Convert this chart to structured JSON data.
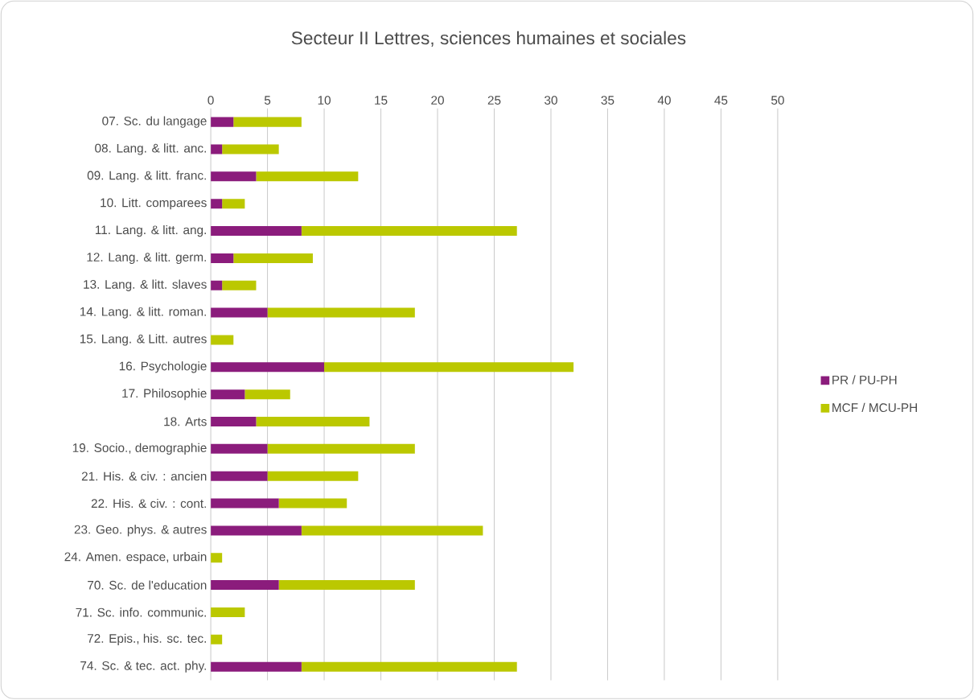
{
  "chart_data": {
    "type": "bar",
    "title": "Secteur II Lettres, sciences humaines et sociales",
    "orientation": "horizontal",
    "stacked": true,
    "categories": [
      "07. Sc. du langage",
      "08. Lang. & litt. anc.",
      "09. Lang. & litt. franc.",
      "10. Litt. comparees",
      "11. Lang. & litt. ang.",
      "12. Lang. & litt. germ.",
      "13. Lang. & litt. slaves",
      "14. Lang. & litt. roman.",
      "15. Lang. & Litt. autres",
      "16. Psychologie",
      "17. Philosophie",
      "18. Arts",
      "19. Socio., demographie",
      "21. His. & civ. : ancien",
      "22. His. & civ. : cont.",
      "23. Geo. phys. & autres",
      "24. Amen. espace, urbain",
      "70. Sc. de l'education",
      "71. Sc. info. communic.",
      "72. Epis., his. sc. tec.",
      "74. Sc. & tec. act. phy."
    ],
    "series": [
      {
        "name": "PR / PU-PH",
        "color": "#8b1c7c",
        "values": [
          2,
          1,
          4,
          1,
          8,
          2,
          1,
          5,
          0,
          10,
          3,
          4,
          5,
          5,
          6,
          8,
          0,
          6,
          0,
          0,
          8
        ]
      },
      {
        "name": "MCF / MCU-PH",
        "color": "#bbc800",
        "values": [
          6,
          5,
          9,
          2,
          19,
          7,
          3,
          13,
          2,
          22,
          4,
          10,
          13,
          8,
          6,
          16,
          1,
          12,
          3,
          1,
          19
        ]
      }
    ],
    "xlim": [
      0,
      50
    ],
    "xticks": [
      0,
      5,
      10,
      15,
      20,
      25,
      30,
      35,
      40,
      45,
      50
    ],
    "grid": "x",
    "legend": "right"
  }
}
